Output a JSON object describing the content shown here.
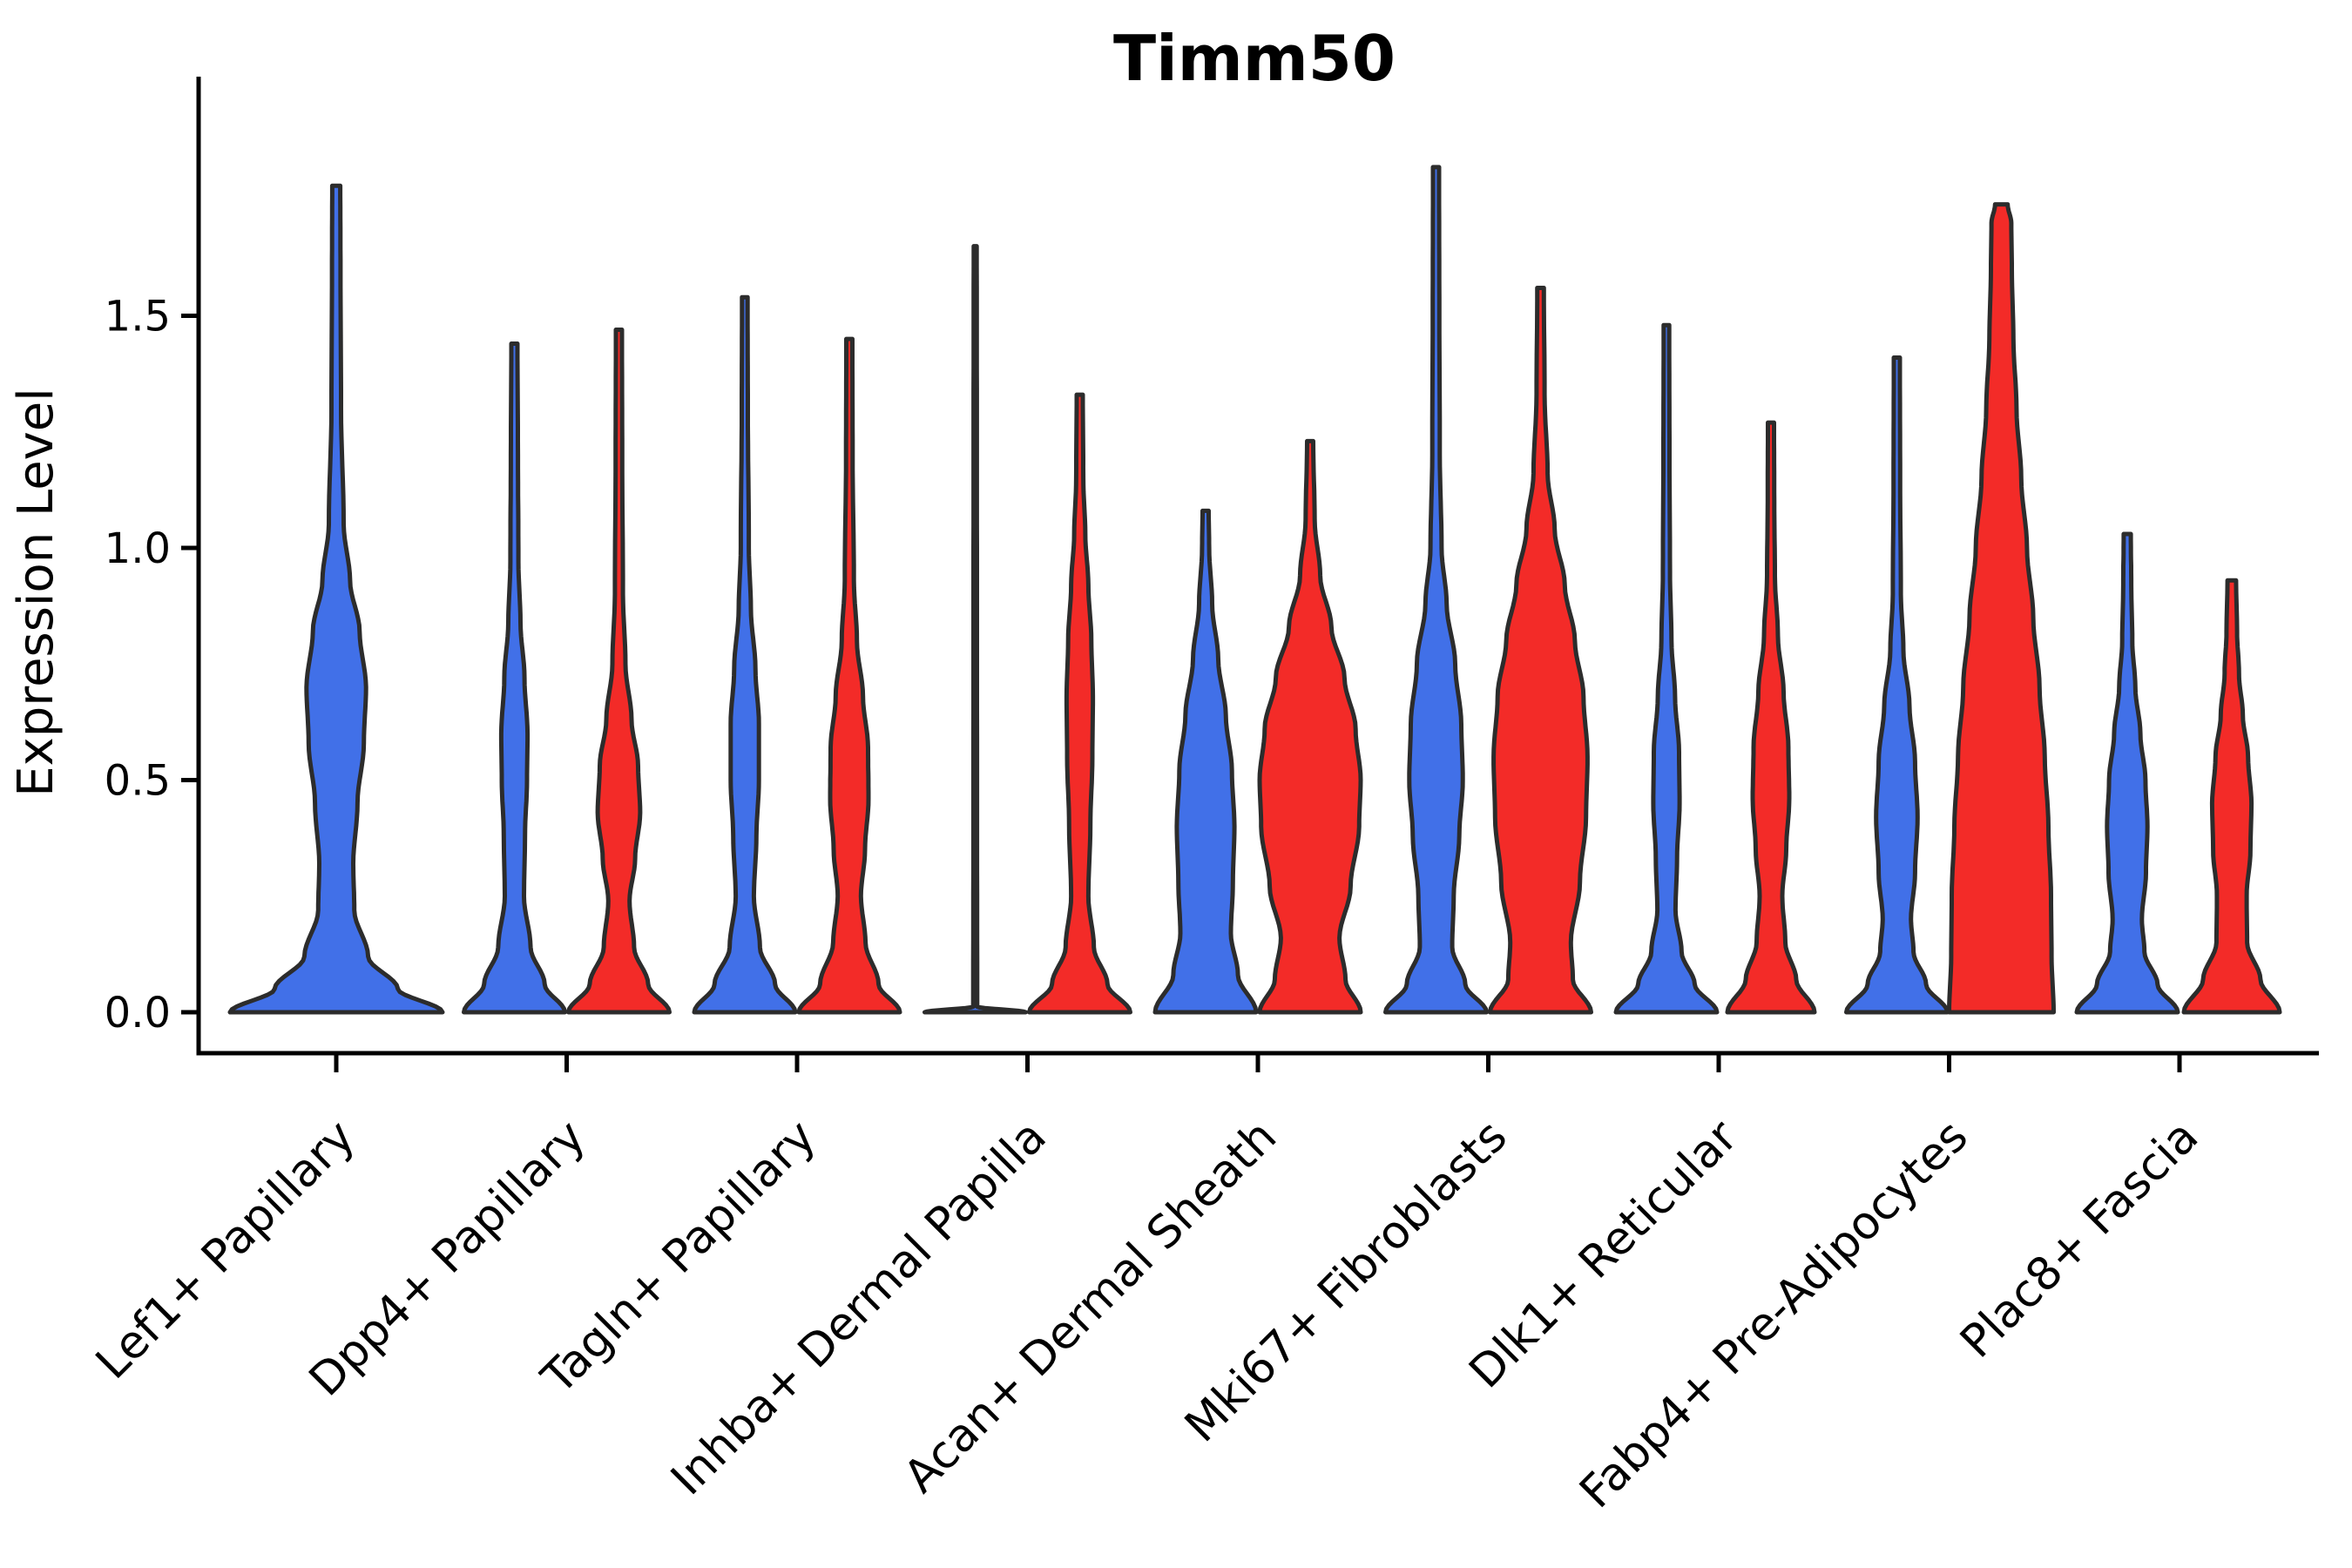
{
  "chart_data": {
    "type": "violin",
    "title": "Timm50",
    "ylabel": "Expression Level",
    "yticks": [
      {
        "value": 0.0,
        "label": "0.0"
      },
      {
        "value": 0.5,
        "label": "0.5"
      },
      {
        "value": 1.0,
        "label": "1.0"
      },
      {
        "value": 1.5,
        "label": "1.5"
      }
    ],
    "categories": [
      "Lef1+ Papillary",
      "Dpp4+ Papillary",
      "Tagln+ Papillary",
      "Inhba+ Dermal Papilla",
      "Acan+ Dermal Sheath",
      "Mki67+ Fibroblasts",
      "Dlk1+ Reticular",
      "Fabp4+ Pre-Adipocytes",
      "Plac8+ Fascia"
    ],
    "series": [
      {
        "id": "blue",
        "color": "#4170E8"
      },
      {
        "id": "red",
        "color": "#F32B28"
      }
    ],
    "edge_color": "#2c2c2c",
    "background": "#ffffff",
    "grid": false,
    "legend": "none",
    "ylim": [
      -0.09,
      2.0
    ],
    "violins": [
      {
        "category": 0,
        "series": "blue",
        "position": "center",
        "max": 1.78,
        "half_width": 122,
        "profile": [
          [
            0,
            1
          ],
          [
            0.05,
            0.58
          ],
          [
            0.12,
            0.3
          ],
          [
            0.22,
            0.17
          ],
          [
            0.32,
            0.16
          ],
          [
            0.45,
            0.2
          ],
          [
            0.58,
            0.26
          ],
          [
            0.7,
            0.28
          ],
          [
            0.82,
            0.22
          ],
          [
            0.93,
            0.13
          ],
          [
            1.05,
            0.07
          ],
          [
            1.3,
            0.045
          ],
          [
            1.6,
            0.04
          ],
          [
            1.78,
            0.038
          ]
        ]
      },
      {
        "category": 1,
        "series": "blue",
        "position": "left",
        "max": 1.44,
        "half_width": 58,
        "profile": [
          [
            0,
            1
          ],
          [
            0.06,
            0.6
          ],
          [
            0.14,
            0.32
          ],
          [
            0.25,
            0.19
          ],
          [
            0.38,
            0.21
          ],
          [
            0.5,
            0.25
          ],
          [
            0.6,
            0.26
          ],
          [
            0.72,
            0.2
          ],
          [
            0.84,
            0.12
          ],
          [
            0.97,
            0.08
          ],
          [
            1.2,
            0.07
          ],
          [
            1.44,
            0.06
          ]
        ]
      },
      {
        "category": 1,
        "series": "red",
        "position": "right",
        "max": 1.47,
        "half_width": 58,
        "profile": [
          [
            0,
            1
          ],
          [
            0.06,
            0.58
          ],
          [
            0.14,
            0.3
          ],
          [
            0.24,
            0.21
          ],
          [
            0.33,
            0.32
          ],
          [
            0.43,
            0.42
          ],
          [
            0.53,
            0.38
          ],
          [
            0.63,
            0.25
          ],
          [
            0.75,
            0.13
          ],
          [
            0.9,
            0.08
          ],
          [
            1.2,
            0.065
          ],
          [
            1.47,
            0.06
          ]
        ]
      },
      {
        "category": 2,
        "series": "blue",
        "position": "left",
        "max": 1.54,
        "half_width": 58,
        "profile": [
          [
            0,
            1
          ],
          [
            0.06,
            0.6
          ],
          [
            0.14,
            0.3
          ],
          [
            0.25,
            0.18
          ],
          [
            0.38,
            0.23
          ],
          [
            0.5,
            0.28
          ],
          [
            0.62,
            0.28
          ],
          [
            0.74,
            0.21
          ],
          [
            0.87,
            0.12
          ],
          [
            1.0,
            0.08
          ],
          [
            1.3,
            0.06
          ],
          [
            1.54,
            0.055
          ]
        ]
      },
      {
        "category": 2,
        "series": "red",
        "position": "right",
        "max": 1.45,
        "half_width": 58,
        "profile": [
          [
            0,
            1
          ],
          [
            0.06,
            0.58
          ],
          [
            0.15,
            0.32
          ],
          [
            0.25,
            0.23
          ],
          [
            0.35,
            0.31
          ],
          [
            0.46,
            0.38
          ],
          [
            0.57,
            0.37
          ],
          [
            0.68,
            0.27
          ],
          [
            0.8,
            0.15
          ],
          [
            0.93,
            0.09
          ],
          [
            1.2,
            0.065
          ],
          [
            1.45,
            0.06
          ]
        ]
      },
      {
        "category": 3,
        "series": "blue",
        "position": "left",
        "max": 1.65,
        "half_width": 58,
        "profile": [
          [
            0,
            1
          ],
          [
            0.012,
            0.04
          ],
          [
            0.4,
            0.036
          ],
          [
            0.9,
            0.034
          ],
          [
            1.3,
            0.032
          ],
          [
            1.65,
            0.03
          ]
        ]
      },
      {
        "category": 3,
        "series": "red",
        "position": "right",
        "max": 1.33,
        "half_width": 58,
        "profile": [
          [
            0,
            1
          ],
          [
            0.06,
            0.55
          ],
          [
            0.14,
            0.28
          ],
          [
            0.25,
            0.17
          ],
          [
            0.4,
            0.21
          ],
          [
            0.55,
            0.25
          ],
          [
            0.68,
            0.26
          ],
          [
            0.8,
            0.23
          ],
          [
            0.92,
            0.17
          ],
          [
            1.03,
            0.11
          ],
          [
            1.15,
            0.07
          ],
          [
            1.33,
            0.06
          ]
        ]
      },
      {
        "category": 4,
        "series": "blue",
        "position": "left",
        "max": 1.08,
        "half_width": 58,
        "profile": [
          [
            0,
            1
          ],
          [
            0.08,
            0.64
          ],
          [
            0.17,
            0.5
          ],
          [
            0.28,
            0.54
          ],
          [
            0.4,
            0.57
          ],
          [
            0.52,
            0.52
          ],
          [
            0.64,
            0.4
          ],
          [
            0.76,
            0.25
          ],
          [
            0.88,
            0.13
          ],
          [
            1.0,
            0.07
          ],
          [
            1.08,
            0.06
          ]
        ]
      },
      {
        "category": 4,
        "series": "red",
        "position": "right",
        "max": 1.23,
        "half_width": 58,
        "profile": [
          [
            0,
            1
          ],
          [
            0.07,
            0.7
          ],
          [
            0.16,
            0.58
          ],
          [
            0.27,
            0.8
          ],
          [
            0.4,
            0.97
          ],
          [
            0.5,
            1
          ],
          [
            0.61,
            0.9
          ],
          [
            0.72,
            0.68
          ],
          [
            0.83,
            0.42
          ],
          [
            0.94,
            0.2
          ],
          [
            1.06,
            0.09
          ],
          [
            1.23,
            0.06
          ]
        ]
      },
      {
        "category": 5,
        "series": "blue",
        "position": "left",
        "max": 1.82,
        "half_width": 58,
        "profile": [
          [
            0,
            1
          ],
          [
            0.06,
            0.58
          ],
          [
            0.14,
            0.32
          ],
          [
            0.25,
            0.35
          ],
          [
            0.38,
            0.46
          ],
          [
            0.5,
            0.53
          ],
          [
            0.62,
            0.5
          ],
          [
            0.75,
            0.38
          ],
          [
            0.88,
            0.21
          ],
          [
            1.0,
            0.11
          ],
          [
            1.2,
            0.075
          ],
          [
            1.5,
            0.065
          ],
          [
            1.82,
            0.06
          ]
        ]
      },
      {
        "category": 5,
        "series": "red",
        "position": "right",
        "max": 1.56,
        "half_width": 58,
        "profile": [
          [
            0,
            1
          ],
          [
            0.07,
            0.64
          ],
          [
            0.15,
            0.6
          ],
          [
            0.28,
            0.78
          ],
          [
            0.42,
            0.9
          ],
          [
            0.55,
            0.93
          ],
          [
            0.68,
            0.85
          ],
          [
            0.8,
            0.68
          ],
          [
            0.92,
            0.48
          ],
          [
            1.04,
            0.28
          ],
          [
            1.16,
            0.14
          ],
          [
            1.33,
            0.08
          ],
          [
            1.56,
            0.065
          ]
        ]
      },
      {
        "category": 6,
        "series": "blue",
        "position": "left",
        "max": 1.48,
        "half_width": 58,
        "profile": [
          [
            0,
            1
          ],
          [
            0.06,
            0.56
          ],
          [
            0.13,
            0.3
          ],
          [
            0.22,
            0.18
          ],
          [
            0.33,
            0.21
          ],
          [
            0.45,
            0.26
          ],
          [
            0.56,
            0.25
          ],
          [
            0.68,
            0.17
          ],
          [
            0.8,
            0.1
          ],
          [
            0.95,
            0.07
          ],
          [
            1.2,
            0.06
          ],
          [
            1.48,
            0.055
          ]
        ]
      },
      {
        "category": 6,
        "series": "red",
        "position": "right",
        "max": 1.27,
        "half_width": 50,
        "profile": [
          [
            0,
            1
          ],
          [
            0.07,
            0.58
          ],
          [
            0.15,
            0.33
          ],
          [
            0.25,
            0.26
          ],
          [
            0.35,
            0.35
          ],
          [
            0.46,
            0.42
          ],
          [
            0.57,
            0.4
          ],
          [
            0.69,
            0.29
          ],
          [
            0.81,
            0.16
          ],
          [
            0.94,
            0.09
          ],
          [
            1.1,
            0.075
          ],
          [
            1.27,
            0.07
          ]
        ]
      },
      {
        "category": 7,
        "series": "blue",
        "position": "left",
        "max": 1.41,
        "half_width": 58,
        "profile": [
          [
            0,
            1
          ],
          [
            0.06,
            0.58
          ],
          [
            0.13,
            0.33
          ],
          [
            0.2,
            0.28
          ],
          [
            0.3,
            0.36
          ],
          [
            0.42,
            0.41
          ],
          [
            0.54,
            0.36
          ],
          [
            0.66,
            0.25
          ],
          [
            0.78,
            0.13
          ],
          [
            0.9,
            0.08
          ],
          [
            1.15,
            0.065
          ],
          [
            1.41,
            0.06
          ]
        ]
      },
      {
        "category": 7,
        "series": "red",
        "position": "right",
        "max": 1.74,
        "half_width": 60,
        "profile": [
          [
            0,
            1
          ],
          [
            0.12,
            0.96
          ],
          [
            0.25,
            0.95
          ],
          [
            0.4,
            0.9
          ],
          [
            0.55,
            0.83
          ],
          [
            0.7,
            0.73
          ],
          [
            0.85,
            0.61
          ],
          [
            1.0,
            0.49
          ],
          [
            1.15,
            0.38
          ],
          [
            1.3,
            0.29
          ],
          [
            1.45,
            0.23
          ],
          [
            1.6,
            0.2
          ],
          [
            1.7,
            0.19
          ],
          [
            1.74,
            0.12
          ]
        ]
      },
      {
        "category": 8,
        "series": "blue",
        "position": "left",
        "max": 1.03,
        "half_width": 58,
        "profile": [
          [
            0,
            1
          ],
          [
            0.06,
            0.6
          ],
          [
            0.13,
            0.34
          ],
          [
            0.2,
            0.29
          ],
          [
            0.3,
            0.37
          ],
          [
            0.4,
            0.4
          ],
          [
            0.5,
            0.36
          ],
          [
            0.6,
            0.26
          ],
          [
            0.7,
            0.16
          ],
          [
            0.8,
            0.1
          ],
          [
            0.92,
            0.08
          ],
          [
            1.03,
            0.07
          ]
        ]
      },
      {
        "category": 8,
        "series": "red",
        "position": "right",
        "max": 0.93,
        "half_width": 55,
        "profile": [
          [
            0,
            1
          ],
          [
            0.07,
            0.6
          ],
          [
            0.15,
            0.32
          ],
          [
            0.25,
            0.31
          ],
          [
            0.35,
            0.39
          ],
          [
            0.45,
            0.41
          ],
          [
            0.55,
            0.34
          ],
          [
            0.64,
            0.23
          ],
          [
            0.73,
            0.15
          ],
          [
            0.82,
            0.11
          ],
          [
            0.93,
            0.09
          ]
        ]
      }
    ]
  }
}
